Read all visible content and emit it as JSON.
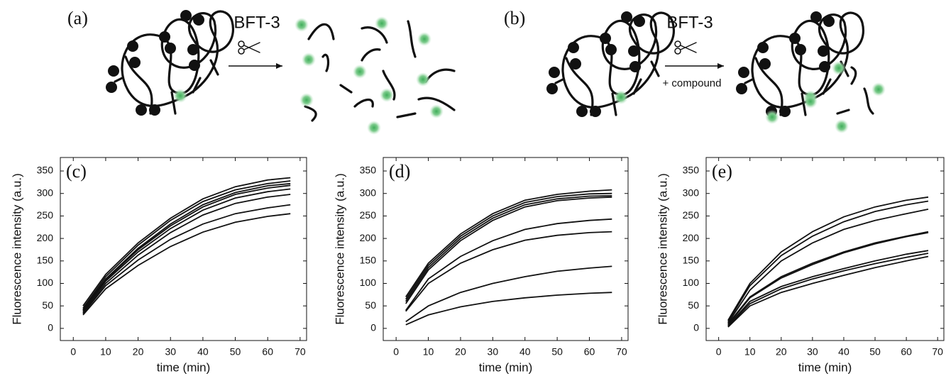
{
  "panels": [
    {
      "label": "(a)",
      "enzyme": "BFT-3"
    },
    {
      "label": "(b)",
      "enzyme": "BFT-3",
      "condition": "+ compound"
    }
  ],
  "chart_data": [
    {
      "type": "line",
      "label": "(c)",
      "x_label": "time (min)",
      "y_label": "Fluorescence intensity (a.u.)",
      "color": "#111111",
      "x": [
        3,
        10,
        20,
        30,
        40,
        50,
        60,
        67
      ],
      "series": [
        {
          "values": [
            50,
            120,
            190,
            245,
            288,
            315,
            330,
            335
          ]
        },
        {
          "values": [
            45,
            115,
            185,
            240,
            282,
            308,
            322,
            328
          ]
        },
        {
          "values": [
            42,
            110,
            178,
            232,
            275,
            302,
            317,
            322
          ]
        },
        {
          "values": [
            40,
            108,
            175,
            228,
            270,
            298,
            312,
            318
          ]
        },
        {
          "values": [
            38,
            105,
            170,
            222,
            263,
            290,
            304,
            310
          ]
        },
        {
          "values": [
            35,
            100,
            163,
            213,
            252,
            278,
            292,
            298
          ]
        },
        {
          "values": [
            33,
            95,
            152,
            198,
            232,
            255,
            268,
            275
          ]
        },
        {
          "values": [
            30,
            88,
            140,
            182,
            214,
            236,
            249,
            255
          ]
        }
      ],
      "xlim": [
        -4,
        72
      ],
      "xticks": [
        0,
        10,
        20,
        30,
        40,
        50,
        60,
        70
      ],
      "ylim": [
        -27,
        380
      ],
      "yticks": [
        0,
        50,
        100,
        150,
        200,
        250,
        300,
        350
      ]
    },
    {
      "type": "line",
      "label": "(d)",
      "x_label": "time (min)",
      "y_label": "Fluorescence intensity (a.u.)",
      "color": "#111111",
      "x": [
        3,
        10,
        20,
        30,
        40,
        50,
        60,
        67
      ],
      "series": [
        {
          "values": [
            70,
            145,
            210,
            255,
            285,
            298,
            305,
            308
          ]
        },
        {
          "values": [
            65,
            140,
            205,
            250,
            280,
            293,
            299,
            300
          ]
        },
        {
          "values": [
            60,
            135,
            200,
            245,
            275,
            288,
            294,
            295
          ]
        },
        {
          "values": [
            55,
            130,
            195,
            240,
            270,
            284,
            290,
            292
          ]
        },
        {
          "values": [
            40,
            110,
            160,
            195,
            220,
            233,
            240,
            243
          ]
        },
        {
          "values": [
            38,
            100,
            145,
            175,
            196,
            207,
            213,
            215
          ]
        },
        {
          "values": [
            15,
            50,
            80,
            100,
            115,
            127,
            134,
            138
          ]
        },
        {
          "values": [
            8,
            30,
            48,
            60,
            68,
            74,
            78,
            80
          ]
        }
      ],
      "xlim": [
        -4,
        72
      ],
      "xticks": [
        0,
        10,
        20,
        30,
        40,
        50,
        60,
        70
      ],
      "ylim": [
        -27,
        380
      ],
      "yticks": [
        0,
        50,
        100,
        150,
        200,
        250,
        300,
        350
      ]
    },
    {
      "type": "line",
      "label": "(e)",
      "x_label": "time (min)",
      "y_label": "Fluorescence intensity (a.u.)",
      "color": "#111111",
      "x": [
        3,
        10,
        20,
        30,
        40,
        50,
        60,
        67
      ],
      "series": [
        {
          "values": [
            18,
            100,
            170,
            215,
            248,
            270,
            285,
            292
          ]
        },
        {
          "values": [
            15,
            95,
            162,
            205,
            237,
            260,
            275,
            283
          ]
        },
        {
          "values": [
            12,
            85,
            150,
            190,
            220,
            240,
            255,
            265
          ]
        },
        {
          "values": [
            10,
            70,
            115,
            145,
            170,
            190,
            205,
            215
          ]
        },
        {
          "values": [
            8,
            68,
            112,
            142,
            168,
            188,
            204,
            213
          ]
        },
        {
          "values": [
            6,
            60,
            93,
            115,
            133,
            150,
            165,
            173
          ]
        },
        {
          "values": [
            5,
            55,
            88,
            110,
            128,
            144,
            158,
            167
          ]
        },
        {
          "values": [
            3,
            50,
            80,
            100,
            118,
            135,
            150,
            160
          ]
        }
      ],
      "xlim": [
        -4,
        72
      ],
      "xticks": [
        0,
        10,
        20,
        30,
        40,
        50,
        60,
        70
      ],
      "ylim": [
        -27,
        380
      ],
      "yticks": [
        0,
        50,
        100,
        150,
        200,
        250,
        300,
        350
      ]
    }
  ]
}
